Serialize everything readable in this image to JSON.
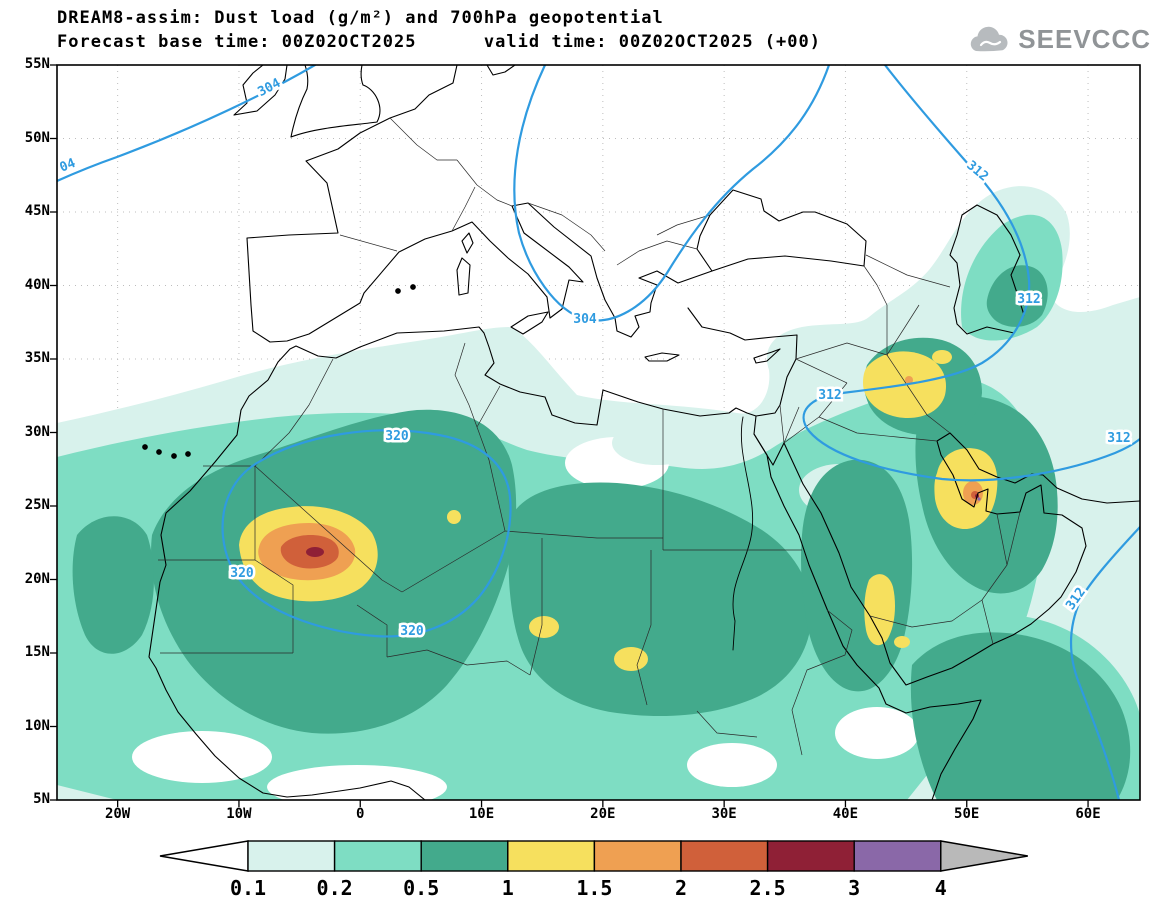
{
  "header": {
    "title_line1": "DREAM8-assim: Dust load (g/m²) and 700hPa geopotential",
    "title_line2": "Forecast base time: 00Z02OCT2025      valid time: 00Z02OCT2025 (+00)",
    "logo_text": "SEEVCCC"
  },
  "map": {
    "lat_ticks": [
      "55N",
      "50N",
      "45N",
      "40N",
      "35N",
      "30N",
      "25N",
      "20N",
      "15N",
      "10N",
      "5N"
    ],
    "lon_ticks": [
      "20W",
      "10W",
      "0",
      "10E",
      "20E",
      "30E",
      "40E",
      "50E",
      "60E"
    ],
    "contour_labels": {
      "g304": "304",
      "g304_clipped": "04",
      "g312": "312",
      "g320": "320"
    },
    "contour_color": "#2f9be0"
  },
  "colorbar": {
    "labels": [
      "0.1",
      "0.2",
      "0.5",
      "1",
      "1.5",
      "2",
      "2.5",
      "3",
      "4"
    ],
    "below_color": "#ffffff",
    "above_color": "#b9b9b9",
    "colors": [
      "#d8f2ec",
      "#7eddc3",
      "#43aa8c",
      "#f6e05e",
      "#efa052",
      "#d0603a",
      "#8f2036",
      "#8a68a8"
    ]
  },
  "chart_data": {
    "type": "heatmap",
    "field": "Dust load",
    "units": "g/m²",
    "fill_levels": [
      0.1,
      0.2,
      0.5,
      1,
      1.5,
      2,
      2.5,
      3,
      4
    ],
    "overlay_field": "700hPa geopotential",
    "overlay_contour_labels_visible": [
      304,
      312,
      320
    ],
    "lon_range": [
      "20W",
      "60E"
    ],
    "lat_range": [
      "5N",
      "55N"
    ],
    "notable_maxima": [
      {
        "region": "Mali / southern Algeria (~4W, 22N)",
        "peak_band": "2.5-3"
      },
      {
        "region": "Persian Gulf near Qatar (~51E, 26N)",
        "peak_band": "2-3"
      },
      {
        "region": "Iraq (~44E, 33N)",
        "peak_band": "1.5-2"
      }
    ]
  }
}
